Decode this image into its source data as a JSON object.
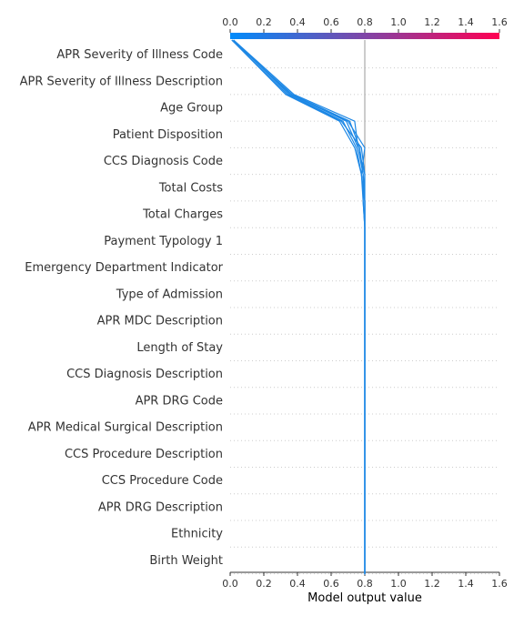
{
  "chart_data": {
    "type": "line",
    "chart_style": "shap-decision-plot",
    "xlabel": "Model output value",
    "xlim": [
      0.0,
      1.6
    ],
    "xticks": [
      "0.0",
      "0.2",
      "0.4",
      "0.6",
      "0.8",
      "1.0",
      "1.2",
      "1.4",
      "1.6"
    ],
    "base_value": 0.8,
    "grid": true,
    "colorbar": {
      "position": "top",
      "from_color": "#008bfb",
      "to_color": "#ff0052",
      "range": [
        0.0,
        1.6
      ]
    },
    "line_color": "#1e88e5",
    "features": [
      "APR Severity of Illness Code",
      "APR Severity of Illness Description",
      "Age Group",
      "Patient Disposition",
      "CCS Diagnosis Code",
      "Total Costs",
      "Total Charges",
      "Payment Typology 1",
      "Emergency Department Indicator",
      "Type of Admission",
      "APR MDC Description",
      "Length of Stay",
      "CCS Diagnosis Description",
      "APR DRG Code",
      "APR Medical Surgical Description",
      "CCS Procedure Description",
      "CCS Procedure Code",
      "APR DRG Description",
      "Ethnicity",
      "Birth Weight"
    ],
    "series": [
      {
        "values": [
          0.8,
          0.8,
          0.8,
          0.8,
          0.8,
          0.8,
          0.8,
          0.8,
          0.8,
          0.8,
          0.8,
          0.8,
          0.8,
          0.8,
          0.8,
          0.8,
          0.79,
          0.77,
          0.71,
          0.37,
          0.01
        ]
      },
      {
        "values": [
          0.8,
          0.8,
          0.8,
          0.8,
          0.8,
          0.8,
          0.8,
          0.8,
          0.8,
          0.8,
          0.8,
          0.8,
          0.8,
          0.8,
          0.8,
          0.79,
          0.78,
          0.75,
          0.67,
          0.35,
          0.02
        ]
      },
      {
        "values": [
          0.8,
          0.8,
          0.8,
          0.8,
          0.8,
          0.8,
          0.8,
          0.8,
          0.8,
          0.8,
          0.8,
          0.8,
          0.8,
          0.8,
          0.8,
          0.8,
          0.8,
          0.76,
          0.74,
          0.38,
          0.02
        ]
      },
      {
        "values": [
          0.8,
          0.8,
          0.8,
          0.8,
          0.8,
          0.8,
          0.8,
          0.8,
          0.8,
          0.8,
          0.8,
          0.8,
          0.8,
          0.8,
          0.8,
          0.8,
          0.78,
          0.8,
          0.7,
          0.36,
          0.02
        ]
      },
      {
        "values": [
          0.8,
          0.8,
          0.8,
          0.8,
          0.8,
          0.8,
          0.8,
          0.8,
          0.8,
          0.8,
          0.8,
          0.8,
          0.8,
          0.8,
          0.8,
          0.79,
          0.8,
          0.78,
          0.66,
          0.34,
          0.01
        ]
      },
      {
        "values": [
          0.8,
          0.8,
          0.8,
          0.8,
          0.8,
          0.8,
          0.8,
          0.8,
          0.8,
          0.8,
          0.8,
          0.8,
          0.8,
          0.8,
          0.8,
          0.8,
          0.79,
          0.76,
          0.69,
          0.36,
          0.02
        ]
      },
      {
        "values": [
          0.8,
          0.8,
          0.8,
          0.8,
          0.8,
          0.8,
          0.8,
          0.8,
          0.8,
          0.8,
          0.8,
          0.8,
          0.8,
          0.8,
          0.8,
          0.8,
          0.78,
          0.74,
          0.65,
          0.33,
          0.01
        ]
      }
    ]
  }
}
